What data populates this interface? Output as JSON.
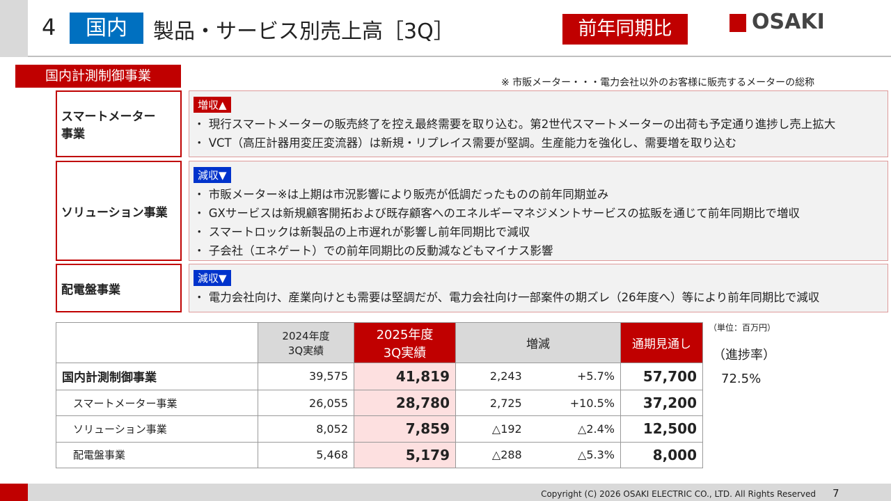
{
  "header": {
    "number": "4",
    "tag": "国内",
    "title": "製品・サービス別売上高［3Q］",
    "badge": "前年同期比",
    "logo": "OSAKI"
  },
  "section": "国内計測制御事業",
  "note": "※ 市販メーター・・・電力会社以外のお客様に販売するメーターの総称",
  "segments": [
    {
      "name": "スマートメーター\n事業",
      "status": "増収▲",
      "bullets": [
        "・ 現行スマートメーターの販売終了を控え最終需要を取り込む。第2世代スマートメーターの出荷も予定通り進捗し売上拡大",
        "・ VCT（高圧計器用変圧変流器）は新規・リプレイス需要が堅調。生産能力を強化し、需要増を取り込む"
      ]
    },
    {
      "name": "ソリューション事業",
      "status": "減収▼",
      "bullets": [
        "・ 市販メーター※は上期は市況影響により販売が低調だったものの前年同期並み",
        "・ GXサービスは新規顧客開拓および既存顧客へのエネルギーマネジメントサービスの拡販を通じて前年同期比で増収",
        "・ スマートロックは新製品の上市遅れが影響し前年同期比で減収",
        "・ 子会社（エネゲート）での前年同期比の反動減などもマイナス影響"
      ]
    },
    {
      "name": "配電盤事業",
      "status": "減収▼",
      "bullets": [
        "・ 電力会社向け、産業向けとも需要は堅調だが、電力会社向け一部案件の期ズレ（26年度へ）等により前年同期比で減収"
      ]
    }
  ],
  "table": {
    "unit": "（単位：百万円）",
    "headers": [
      "2024年度\n3Q実績",
      "2025年度\n3Q実績",
      "増減",
      "通期見通し"
    ],
    "rows": [
      [
        "国内計測制御事業",
        "39,575",
        "41,819",
        "2,243",
        "+5.7%",
        "57,700"
      ],
      [
        "スマートメーター事業",
        "26,055",
        "28,780",
        "2,725",
        "+10.5%",
        "37,200"
      ],
      [
        "ソリューション事業",
        "8,052",
        "7,859",
        "△192",
        "△2.4%",
        "12,500"
      ],
      [
        "配電盤事業",
        "5,468",
        "5,179",
        "△288",
        "△5.3%",
        "8,000"
      ]
    ],
    "progress_label": "（進捗率）",
    "progress": "72.5%"
  },
  "footer": {
    "copyright": "Copyright (C) 2026 OSAKI ELECTRIC CO., LTD. All Rights Reserved",
    "page": "7"
  }
}
